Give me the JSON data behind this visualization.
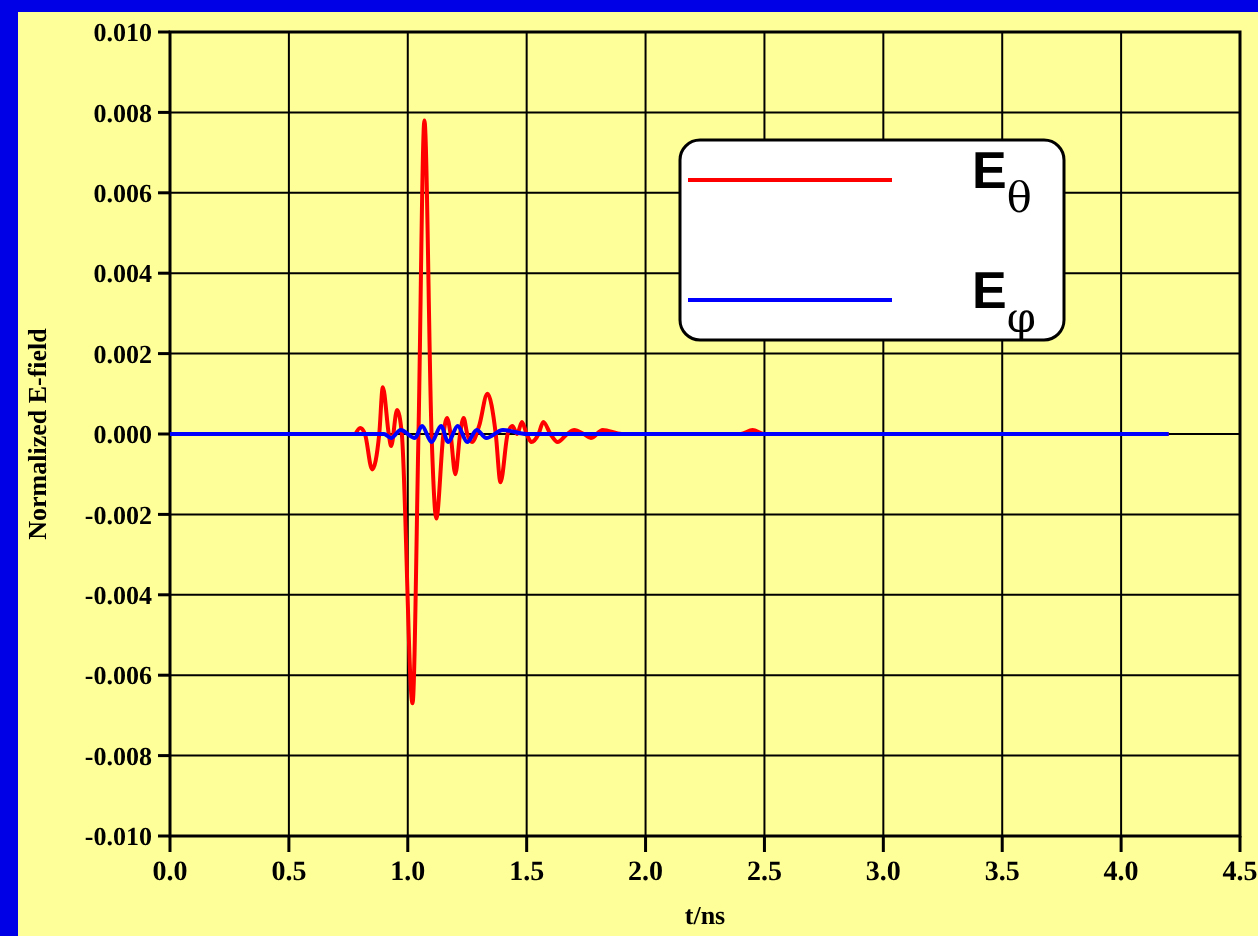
{
  "chart_data": {
    "type": "line",
    "xlabel": "t/ns",
    "ylabel": "Normalized E-field",
    "xlim": [
      0,
      4.5
    ],
    "xticks": [
      {
        "value": 0,
        "label": "0.0"
      },
      {
        "value": 0.5,
        "label": "0.5"
      },
      {
        "value": 1,
        "label": "1.0"
      },
      {
        "value": 1.5,
        "label": "1.5"
      },
      {
        "value": 2,
        "label": "2.0"
      },
      {
        "value": 2.5,
        "label": "2.5"
      },
      {
        "value": 3,
        "label": "3.0"
      },
      {
        "value": 3.5,
        "label": "3.5"
      },
      {
        "value": 4,
        "label": "4.0"
      },
      {
        "value": 4.5,
        "label": "4.5"
      }
    ],
    "ylim": [
      -0.01,
      0.01
    ],
    "yticks": [
      {
        "value": -0.01,
        "label": "-0.010"
      },
      {
        "value": -0.008,
        "label": "-0.008"
      },
      {
        "value": -0.006,
        "label": "-0.006"
      },
      {
        "value": -0.004,
        "label": "-0.004"
      },
      {
        "value": -0.002,
        "label": "-0.002"
      },
      {
        "value": 0,
        "label": "0.000"
      },
      {
        "value": 0.002,
        "label": "0.002"
      },
      {
        "value": 0.004,
        "label": "0.004"
      },
      {
        "value": 0.006,
        "label": "0.006"
      },
      {
        "value": 0.008,
        "label": "0.008"
      },
      {
        "value": 0.01,
        "label": "0.010"
      }
    ],
    "grid": true,
    "legend": "top right",
    "marker": "none",
    "line_style": "solid",
    "series": [
      {
        "name": "E$_{θ}$",
        "color": "#ff0000",
        "x": [
          0.78,
          0.8,
          0.82,
          0.85,
          0.88,
          0.895,
          0.92,
          0.93,
          0.955,
          0.975,
          1.02,
          1.045,
          1.07,
          1.1,
          1.12,
          1.15,
          1.165,
          1.18,
          1.2,
          1.22,
          1.235,
          1.25,
          1.27,
          1.3,
          1.335,
          1.37,
          1.39,
          1.42,
          1.44,
          1.46,
          1.48,
          1.5,
          1.52,
          1.55,
          1.57,
          1.6,
          1.63,
          1.67,
          1.7,
          1.74,
          1.77,
          1.82,
          1.9,
          2.4,
          2.45,
          2.5,
          3.0,
          4.2
        ],
        "values": [
          0,
          0.00015,
          0,
          -0.00088,
          0,
          0.00116,
          0,
          -0.0003,
          0.0006,
          0,
          -0.0067,
          0,
          0.0078,
          0,
          -0.0021,
          0,
          0.0004,
          0,
          -0.001,
          0,
          0.0004,
          0,
          -0.0002,
          0.0002,
          0.001,
          0,
          -0.0012,
          0,
          0.0002,
          0,
          0.0003,
          0,
          -0.0002,
          0,
          0.0003,
          0,
          -0.0002,
          0,
          0.0001,
          0,
          -0.0001,
          0.0001,
          0,
          0,
          0.0001,
          0,
          0,
          0
        ]
      },
      {
        "name": "E$_{φ}$",
        "color": "#0000ff",
        "x": [
          0,
          0.78,
          0.9,
          0.93,
          0.97,
          1.03,
          1.06,
          1.1,
          1.14,
          1.17,
          1.21,
          1.25,
          1.29,
          1.33,
          1.4,
          1.5,
          1.8,
          4.2
        ],
        "values": [
          0,
          0,
          0,
          -0.0001,
          0.0001,
          -0.0001,
          0.0002,
          -0.0002,
          0.0002,
          -0.0002,
          0.0002,
          -0.0002,
          0.0001,
          -0.0001,
          0.0001,
          0,
          0,
          0
        ]
      }
    ]
  }
}
